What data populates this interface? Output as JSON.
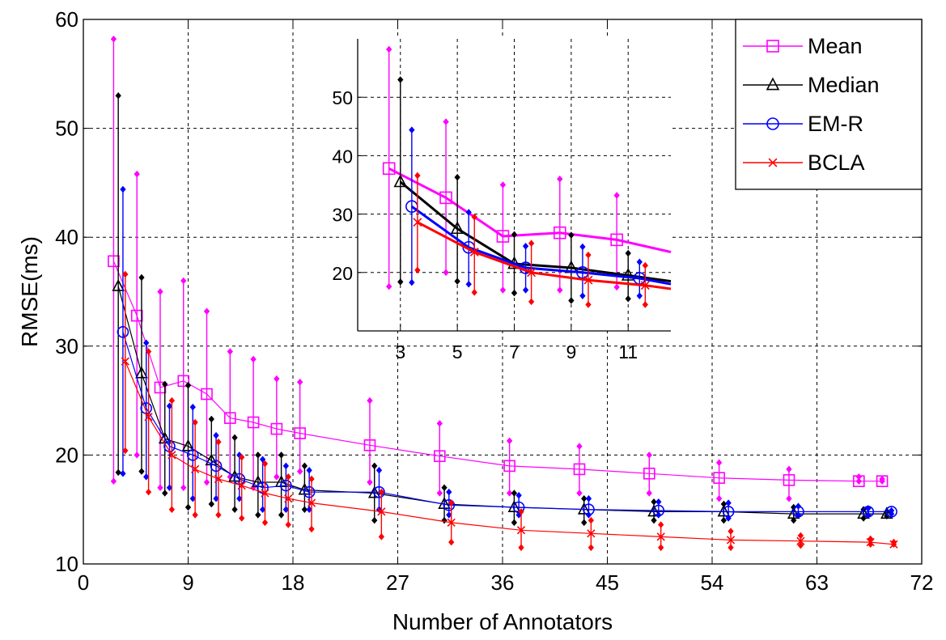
{
  "colors": {
    "mean": "#ff00ff",
    "median": "#000000",
    "emr": "#0000ff",
    "bcla": "#ff0000"
  },
  "chart_data": [
    {
      "type": "line",
      "panel": "main",
      "xlabel": "Number of Annotators",
      "ylabel": "RMSE(ms)",
      "xlim": [
        0,
        72
      ],
      "ylim": [
        10,
        60
      ],
      "xticks": [
        0,
        9,
        18,
        27,
        36,
        45,
        54,
        63,
        72
      ],
      "yticks": [
        10,
        20,
        30,
        40,
        50,
        60
      ],
      "xtick_labels": [
        "0",
        "9",
        "18",
        "27",
        "36",
        "45",
        "54",
        "63",
        "72"
      ],
      "ytick_labels": [
        "10",
        "20",
        "30",
        "40",
        "50",
        "60"
      ],
      "grid": true,
      "legend_position": "top-right",
      "series": [
        {
          "name": "Mean",
          "color_key": "mean",
          "marker": "square",
          "x": [
            2.6,
            4.6,
            6.6,
            8.6,
            10.6,
            12.6,
            14.6,
            16.6,
            18.6,
            24.6,
            30.6,
            36.6,
            42.6,
            48.6,
            54.6,
            60.6,
            66.6,
            68.6
          ],
          "y": [
            37.8,
            32.8,
            26.2,
            26.8,
            25.6,
            23.4,
            23.0,
            22.4,
            22.0,
            20.9,
            19.9,
            19.0,
            18.7,
            18.3,
            17.9,
            17.7,
            17.6,
            17.6
          ],
          "err_low": [
            17.6,
            20.0,
            17.0,
            17.0,
            17.5,
            18.0,
            17.0,
            18.0,
            18.5,
            17.5,
            16.5,
            16.5,
            16.5,
            16.5,
            16.0,
            16.0,
            17.6,
            17.6
          ],
          "err_high": [
            58.2,
            45.8,
            35.0,
            36.0,
            33.2,
            29.5,
            28.8,
            27.0,
            26.7,
            25.0,
            22.9,
            21.3,
            20.8,
            20.0,
            19.3,
            18.7,
            18.0,
            17.8
          ]
        },
        {
          "name": "Median",
          "color_key": "median",
          "marker": "triangle",
          "x": [
            3.0,
            5.0,
            7.0,
            9.0,
            11.0,
            13.0,
            15.0,
            17.0,
            19.0,
            25.0,
            31.0,
            37.0,
            43.0,
            49.0,
            55.0,
            61.0,
            67.0,
            69.0
          ],
          "y": [
            35.5,
            27.5,
            21.5,
            20.8,
            19.5,
            18.0,
            17.5,
            17.5,
            16.8,
            16.5,
            15.5,
            15.2,
            15.0,
            14.8,
            14.8,
            14.6,
            14.6,
            14.6
          ],
          "err_low": [
            18.4,
            18.5,
            16.5,
            15.2,
            15.5,
            15.0,
            14.5,
            14.5,
            15.0,
            14.0,
            14.0,
            13.8,
            13.8,
            14.0,
            14.0,
            14.0,
            14.2,
            14.4
          ],
          "err_high": [
            53.0,
            36.3,
            26.5,
            26.4,
            23.3,
            21.6,
            20.0,
            20.0,
            19.0,
            19.0,
            17.0,
            16.5,
            16.0,
            15.7,
            15.5,
            15.2,
            15.0,
            14.8
          ]
        },
        {
          "name": "EM-R",
          "color_key": "emr",
          "marker": "circle",
          "x": [
            3.4,
            5.4,
            7.4,
            9.4,
            11.4,
            13.4,
            15.4,
            17.4,
            19.4,
            25.4,
            31.4,
            37.4,
            43.4,
            49.4,
            55.4,
            61.4,
            67.4,
            69.4
          ],
          "y": [
            31.3,
            24.3,
            20.8,
            20.0,
            19.0,
            17.8,
            17.0,
            17.2,
            16.6,
            16.6,
            15.4,
            15.2,
            15.0,
            14.9,
            14.8,
            14.8,
            14.8,
            14.8
          ],
          "err_low": [
            18.3,
            18.0,
            17.0,
            16.0,
            16.0,
            16.0,
            15.0,
            15.0,
            15.0,
            15.0,
            14.5,
            14.5,
            14.5,
            14.5,
            14.2,
            14.5,
            14.5,
            14.6
          ],
          "err_high": [
            44.4,
            30.3,
            24.5,
            24.4,
            21.8,
            20.0,
            19.6,
            19.0,
            18.6,
            18.6,
            16.6,
            16.3,
            16.0,
            15.7,
            15.6,
            15.3,
            15.1,
            14.9
          ]
        },
        {
          "name": "BCLA",
          "color_key": "bcla",
          "marker": "x",
          "x": [
            3.6,
            5.6,
            7.6,
            9.6,
            11.6,
            13.6,
            15.6,
            17.6,
            19.6,
            25.6,
            31.6,
            37.6,
            43.6,
            49.6,
            55.6,
            61.6,
            67.6,
            69.6
          ],
          "y": [
            28.6,
            23.5,
            20.0,
            18.7,
            17.8,
            17.2,
            16.5,
            16.0,
            15.6,
            14.8,
            13.8,
            13.1,
            12.8,
            12.5,
            12.2,
            12.1,
            12.0,
            11.8
          ],
          "err_low": [
            20.4,
            16.6,
            15.0,
            14.5,
            14.5,
            14.2,
            13.8,
            13.6,
            13.2,
            12.5,
            12.0,
            11.5,
            11.5,
            11.5,
            11.5,
            11.7,
            11.8,
            11.8
          ],
          "err_high": [
            36.6,
            29.5,
            25.0,
            23.0,
            21.2,
            19.8,
            19.2,
            18.0,
            17.8,
            16.6,
            15.6,
            14.8,
            14.0,
            13.6,
            13.0,
            12.6,
            12.3,
            12.0
          ]
        }
      ]
    },
    {
      "type": "line",
      "panel": "inset",
      "xlim": [
        1.5,
        12.5
      ],
      "ylim": [
        10,
        60
      ],
      "xticks": [
        3,
        5,
        7,
        9,
        11
      ],
      "yticks": [
        20,
        30,
        40,
        50
      ],
      "xtick_labels": [
        "3",
        "5",
        "7",
        "9",
        "11"
      ],
      "ytick_labels": [
        "20",
        "30",
        "40",
        "50"
      ],
      "grid": true,
      "series": [
        {
          "name": "Mean",
          "color_key": "mean",
          "marker": "square",
          "x": [
            2.6,
            4.6,
            6.6,
            8.6,
            10.6,
            12.5
          ],
          "y": [
            37.8,
            32.8,
            26.2,
            26.8,
            25.6,
            23.5
          ],
          "err_x": [
            2.6,
            4.6,
            6.6,
            8.6,
            10.6
          ],
          "err_low": [
            17.6,
            20.0,
            17.0,
            17.0,
            17.5
          ],
          "err_high": [
            58.2,
            45.8,
            35.0,
            36.0,
            33.2
          ]
        },
        {
          "name": "Median",
          "color_key": "median",
          "marker": "triangle",
          "x": [
            3.0,
            5.0,
            7.0,
            9.0,
            11.0,
            12.5
          ],
          "y": [
            35.5,
            27.5,
            21.5,
            20.8,
            19.5,
            18.5
          ],
          "err_x": [
            3.0,
            5.0,
            7.0,
            9.0,
            11.0
          ],
          "err_low": [
            18.4,
            18.5,
            16.5,
            15.2,
            15.5
          ],
          "err_high": [
            53.0,
            36.3,
            26.5,
            26.4,
            23.3
          ]
        },
        {
          "name": "EM-R",
          "color_key": "emr",
          "marker": "circle",
          "x": [
            3.4,
            5.4,
            7.4,
            9.4,
            11.4,
            12.5
          ],
          "y": [
            31.3,
            24.3,
            20.8,
            20.0,
            19.0,
            18.0
          ],
          "err_x": [
            3.4,
            5.4,
            7.4,
            9.4,
            11.4
          ],
          "err_low": [
            18.3,
            18.0,
            17.0,
            16.0,
            16.0
          ],
          "err_high": [
            44.4,
            30.3,
            24.5,
            24.4,
            21.8
          ]
        },
        {
          "name": "BCLA",
          "color_key": "bcla",
          "marker": "x",
          "x": [
            3.6,
            5.6,
            7.6,
            9.6,
            11.6,
            12.5
          ],
          "y": [
            28.6,
            23.5,
            20.0,
            18.7,
            17.8,
            17.2
          ],
          "err_x": [
            3.6,
            5.6,
            7.6,
            9.6,
            11.6
          ],
          "err_low": [
            20.4,
            16.6,
            15.0,
            14.5,
            14.5
          ],
          "err_high": [
            36.6,
            29.5,
            25.0,
            23.0,
            21.2
          ]
        }
      ]
    }
  ]
}
